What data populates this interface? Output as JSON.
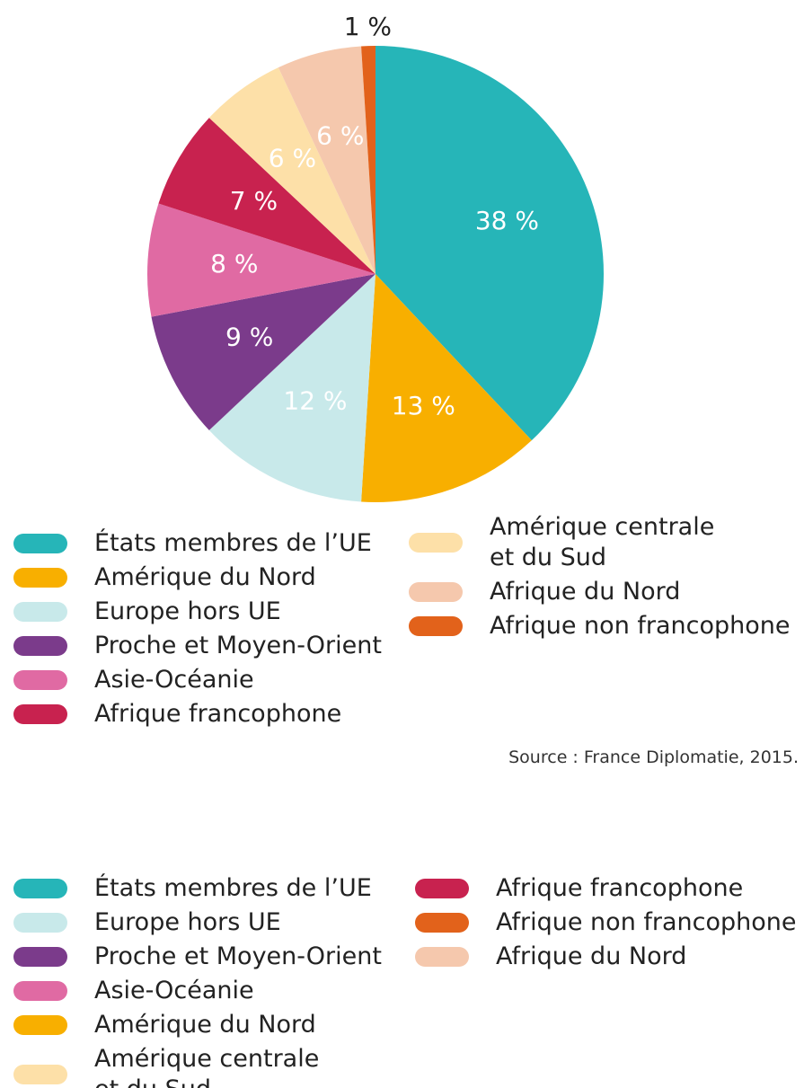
{
  "chart_data": {
    "type": "pie",
    "categories": [
      "États membres de l’UE",
      "Amérique du Nord",
      "Europe hors UE",
      "Proche et Moyen-Orient",
      "Asie-Océanie",
      "Afrique francophone",
      "Amérique centrale\net du Sud",
      "Afrique du Nord",
      "Afrique non francophone"
    ],
    "values": [
      38,
      13,
      12,
      9,
      8,
      7,
      6,
      6,
      1
    ],
    "value_labels": [
      "38 %",
      "13 %",
      "12 %",
      "9 %",
      "8 %",
      "7 %",
      "6 %",
      "6 %",
      "1 %"
    ],
    "colors": [
      "#26b5b8",
      "#f8af00",
      "#c8e9ea",
      "#7b3b8b",
      "#e06aa3",
      "#c8224f",
      "#fde0a8",
      "#f5c8ad",
      "#e2621b"
    ],
    "source": "Source : France Diplomatie, 2015."
  },
  "legend_2": {
    "items": [
      {
        "label": "États membres de l’UE",
        "color": "#26b5b8"
      },
      {
        "label": "Europe hors UE",
        "color": "#c8e9ea"
      },
      {
        "label": "Proche et Moyen-Orient",
        "color": "#7b3b8b"
      },
      {
        "label": "Asie-Océanie",
        "color": "#e06aa3"
      },
      {
        "label": "Amérique du Nord",
        "color": "#f8af00"
      },
      {
        "label": "Amérique centrale\net du Sud",
        "color": "#fde0a8"
      },
      {
        "label": "Afrique francophone",
        "color": "#c8224f"
      },
      {
        "label": "Afrique non francophone",
        "color": "#e2621b"
      },
      {
        "label": "Afrique du Nord",
        "color": "#f5c8ad"
      }
    ]
  }
}
